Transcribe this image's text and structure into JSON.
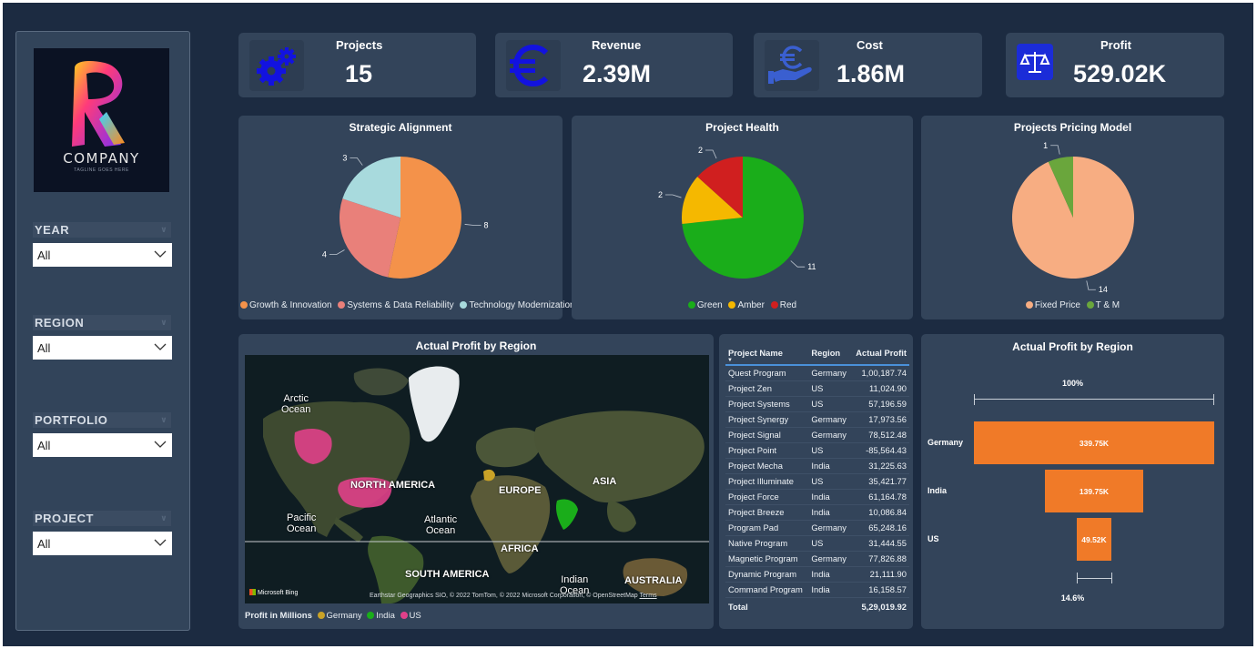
{
  "logo": {
    "brand": "COMPANY",
    "tagline": "TAGLINE GOES HERE"
  },
  "slicers": [
    {
      "title": "YEAR",
      "value": "All"
    },
    {
      "title": "REGION",
      "value": "All"
    },
    {
      "title": "PORTFOLIO",
      "value": "All"
    },
    {
      "title": "PROJECT",
      "value": "All"
    }
  ],
  "kpis": [
    {
      "label": "Projects",
      "value": "15",
      "icon": "gears-icon"
    },
    {
      "label": "Revenue",
      "value": "2.39M",
      "icon": "euro-icon"
    },
    {
      "label": "Cost",
      "value": "1.86M",
      "icon": "hand-euro-icon"
    },
    {
      "label": "Profit",
      "value": "529.02K",
      "icon": "scales-icon"
    }
  ],
  "colors": {
    "background": "#1c2b41",
    "panel": "#33445a",
    "orange": "#f07a28",
    "icon_blue": "#1515e6"
  },
  "chart_data": [
    {
      "type": "pie",
      "title": "Strategic Alignment",
      "categories": [
        "Growth & Innovation",
        "Systems & Data Reliability",
        "Technology Modernization"
      ],
      "values": [
        8,
        4,
        3
      ],
      "colors": [
        "#f4924a",
        "#e9807a",
        "#a8dadd"
      ],
      "legend": "bottom"
    },
    {
      "type": "pie",
      "title": "Project Health",
      "categories": [
        "Green",
        "Amber",
        "Red"
      ],
      "values": [
        11,
        2,
        2
      ],
      "colors": [
        "#1aad1a",
        "#f5b800",
        "#d01f1f"
      ],
      "legend": "bottom"
    },
    {
      "type": "pie",
      "title": "Projects Pricing Model",
      "categories": [
        "Fixed Price",
        "T & M"
      ],
      "values": [
        14,
        1
      ],
      "colors": [
        "#f7ad82",
        "#6aa63c"
      ],
      "legend": "bottom"
    },
    {
      "type": "bar",
      "subtype": "funnel",
      "title": "Actual Profit by Region",
      "categories": [
        "Germany",
        "India",
        "US"
      ],
      "values": [
        339.75,
        139.75,
        49.52
      ],
      "value_labels": [
        "339.75K",
        "139.75K",
        "49.52K"
      ],
      "top_percent_label": "100%",
      "bottom_percent_label": "14.6%",
      "color": "#f07a28"
    }
  ],
  "map": {
    "title": "Actual Profit by Region",
    "labels": {
      "arctic": "Arctic\nOcean",
      "north_america": "NORTH AMERICA",
      "europe": "EUROPE",
      "asia": "ASIA",
      "pacific": "Pacific\nOcean",
      "atlantic": "Atlantic\nOcean",
      "africa": "AFRICA",
      "south_america": "SOUTH AMERICA",
      "indian": "Indian\nOcean",
      "australia": "AUSTRALIA"
    },
    "provider": "Microsoft Bing",
    "attribution": "Earthstar Geographics SIO, © 2022 TomTom, © 2022 Microsoft Corporation, © OpenStreetMap",
    "terms": "Terms",
    "legend_title": "Profit in Millions",
    "legend": [
      {
        "name": "Germany",
        "color": "#c9a227"
      },
      {
        "name": "India",
        "color": "#1aad1a"
      },
      {
        "name": "US",
        "color": "#e0408a"
      }
    ]
  },
  "table": {
    "headers": [
      "Project Name",
      "Region",
      "Actual Profit"
    ],
    "rows": [
      [
        "Quest Program",
        "Germany",
        "1,00,187.74"
      ],
      [
        "Project Zen",
        "US",
        "11,024.90"
      ],
      [
        "Project Systems",
        "US",
        "57,196.59"
      ],
      [
        "Project Synergy",
        "Germany",
        "17,973.56"
      ],
      [
        "Project Signal",
        "Germany",
        "78,512.48"
      ],
      [
        "Project Point",
        "US",
        "-85,564.43"
      ],
      [
        "Project Mecha",
        "India",
        "31,225.63"
      ],
      [
        "Project Illuminate",
        "US",
        "35,421.77"
      ],
      [
        "Project Force",
        "India",
        "61,164.78"
      ],
      [
        "Project Breeze",
        "India",
        "10,086.84"
      ],
      [
        "Program Pad",
        "Germany",
        "65,248.16"
      ],
      [
        "Native Program",
        "US",
        "31,444.55"
      ],
      [
        "Magnetic Program",
        "Germany",
        "77,826.88"
      ],
      [
        "Dynamic Program",
        "India",
        "21,111.90"
      ],
      [
        "Command Program",
        "India",
        "16,158.57"
      ]
    ],
    "total_label": "Total",
    "total_value": "5,29,019.92"
  }
}
